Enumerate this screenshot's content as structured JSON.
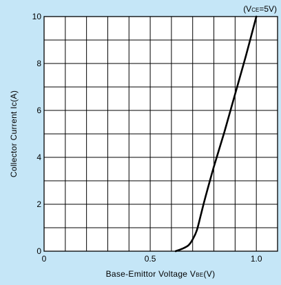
{
  "colors": {
    "page_background": "#c5e6f7",
    "plot_background": "#ffffff",
    "grid": "#000000",
    "curve": "#000000"
  },
  "chart_data": {
    "type": "line",
    "title": "",
    "condition": {
      "prefix": "(V",
      "subscript": "CE",
      "suffix": "=5V)"
    },
    "xlabel": {
      "prefix": "Base-Emittor Voltage V",
      "subscript": "BE",
      "suffix": "(V)"
    },
    "ylabel": "Collector Current Ic(A)",
    "xlim": [
      0,
      1.1
    ],
    "ylim": [
      0,
      10
    ],
    "x_grid_step": 0.1,
    "y_grid_step": 1,
    "grid": true,
    "x_ticks": [
      {
        "value": 0,
        "label": "0"
      },
      {
        "value": 0.5,
        "label": "0.5"
      },
      {
        "value": 1.0,
        "label": "1.0"
      }
    ],
    "y_ticks": [
      {
        "value": 0,
        "label": "0"
      },
      {
        "value": 2,
        "label": "2"
      },
      {
        "value": 4,
        "label": "4"
      },
      {
        "value": 6,
        "label": "6"
      },
      {
        "value": 8,
        "label": "8"
      },
      {
        "value": 10,
        "label": "10"
      }
    ],
    "series": [
      {
        "x": [
          0.62,
          0.65,
          0.68,
          0.7,
          0.72,
          0.74,
          0.76,
          0.8,
          0.85,
          0.9,
          0.95,
          1.0
        ],
        "y": [
          0.0,
          0.1,
          0.25,
          0.5,
          0.9,
          1.6,
          2.3,
          3.6,
          5.1,
          6.7,
          8.3,
          10.0
        ]
      }
    ]
  }
}
